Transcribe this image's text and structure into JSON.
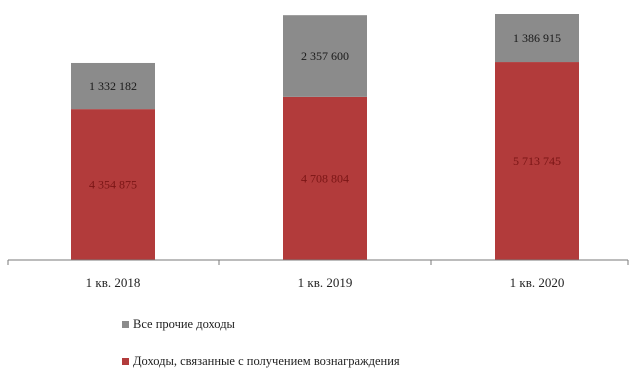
{
  "chart_data": {
    "type": "bar",
    "stacked": true,
    "categories": [
      "1 кв. 2018",
      "1 кв. 2019",
      "1 кв. 2020"
    ],
    "series": [
      {
        "name": "Доходы, связанные с получением вознаграждения",
        "values": [
          4354875,
          4708804,
          5713745
        ],
        "value_labels": [
          "4 354 875",
          "4 708 804",
          "5 713 745"
        ],
        "color": "#b23b3b",
        "label_color": "#7a1515"
      },
      {
        "name": "Все прочие доходы",
        "values": [
          1332182,
          2357600,
          1386915
        ],
        "value_labels": [
          "1 332 182",
          "2 357 600",
          "1 386 915"
        ],
        "color": "#8b8b8b",
        "label_color": "#1a1a1a"
      }
    ],
    "ylim": [
      0,
      7100660
    ],
    "grid": false,
    "legend": "bottom",
    "legend_order": [
      1,
      0
    ]
  }
}
